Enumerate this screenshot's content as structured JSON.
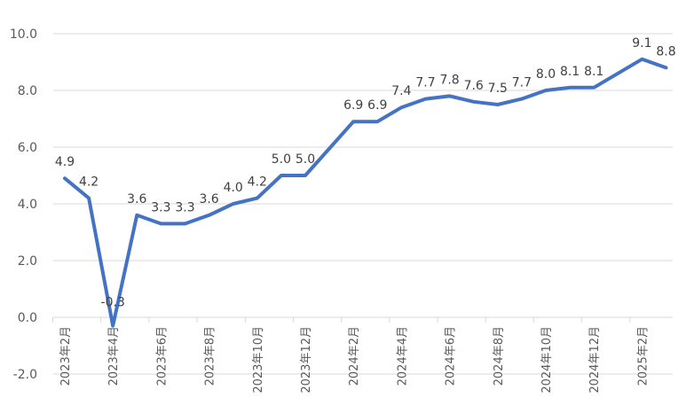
{
  "chart_data": {
    "type": "line",
    "title": "",
    "xlabel": "",
    "ylabel": "",
    "ylim": [
      -2.0,
      10.0
    ],
    "yticks": [
      "10.0",
      "8.0",
      "6.0",
      "4.0",
      "2.0",
      "0.0",
      "-2.0"
    ],
    "grid": true,
    "legend": "none",
    "line_color": "#4472C4",
    "x": [
      "2023年2月",
      "2023年3月",
      "2023年4月",
      "2023年5月",
      "2023年6月",
      "2023年7月",
      "2023年8月",
      "2023年9月",
      "2023年10月",
      "2023年11月",
      "2023年12月",
      "2024年1月",
      "2024年2月",
      "2024年3月",
      "2024年4月",
      "2024年5月",
      "2024年6月",
      "2024年7月",
      "2024年8月",
      "2024年9月",
      "2024年10月",
      "2024年11月",
      "2024年12月",
      "2025年1月",
      "2025年2月",
      "2025年3月"
    ],
    "x_tick_labels_shown": [
      "2023年2月",
      "2023年4月",
      "2023年6月",
      "2023年8月",
      "2023年10月",
      "2023年12月",
      "2024年2月",
      "2024年4月",
      "2024年6月",
      "2024年8月",
      "2024年10月",
      "2024年12月",
      "2025年2月"
    ],
    "series": [
      {
        "name": "",
        "values": [
          4.9,
          4.2,
          -0.3,
          3.6,
          3.3,
          3.3,
          3.6,
          4.0,
          4.2,
          5.0,
          5.0,
          null,
          6.9,
          6.9,
          7.4,
          7.7,
          7.8,
          7.6,
          7.5,
          7.7,
          8.0,
          8.1,
          8.1,
          null,
          9.1,
          8.8
        ],
        "data_labels": [
          "4.9",
          "4.2",
          "-0.3",
          "3.6",
          "3.3",
          "3.3",
          "3.6",
          "4.0",
          "4.2",
          "5.0",
          "5.0",
          "",
          "6.9",
          "6.9",
          "7.4",
          "7.7",
          "7.8",
          "7.6",
          "7.5",
          "7.7",
          "8.0",
          "8.1",
          "8.1",
          "",
          "9.1",
          "8.8"
        ]
      }
    ]
  }
}
